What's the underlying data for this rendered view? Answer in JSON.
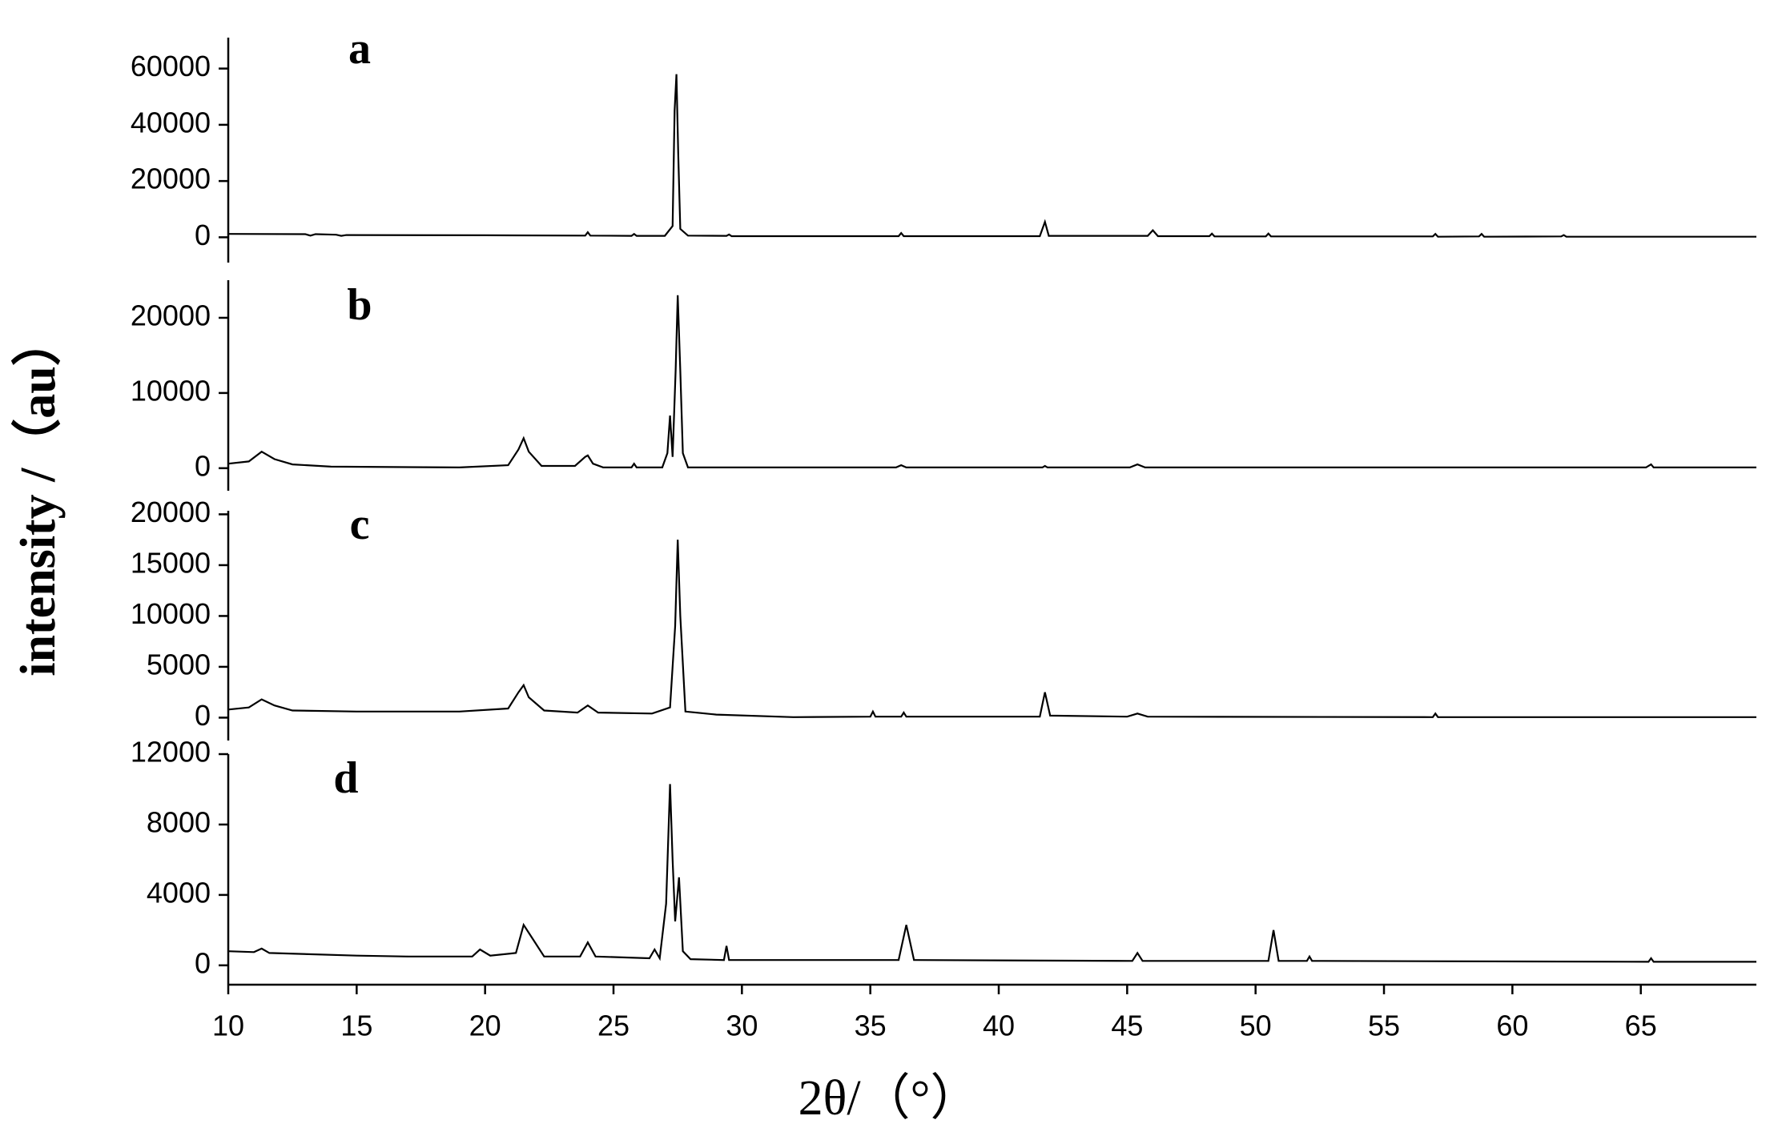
{
  "chart_data": [
    {
      "type": "line",
      "label": "a",
      "color": "#000000",
      "ylabel": "intensity /（au）",
      "xlim": [
        10,
        69.5
      ],
      "ylim": [
        -9000,
        71000
      ],
      "yticks": [
        0,
        20000,
        40000,
        60000
      ],
      "x": [
        10,
        13,
        13.2,
        13.4,
        14.2,
        14.4,
        14.6,
        20,
        23.9,
        24,
        24.1,
        25.7,
        25.8,
        25.9,
        27,
        27.3,
        27.38,
        27.45,
        27.52,
        27.6,
        27.9,
        29.4,
        29.5,
        29.6,
        36.1,
        36.2,
        36.3,
        41.6,
        41.8,
        41.95,
        45.8,
        46,
        46.2,
        48.2,
        48.3,
        48.4,
        50.4,
        50.5,
        50.6,
        56.9,
        57,
        57.1,
        58.7,
        58.8,
        58.9,
        61.9,
        62,
        62.1,
        69.5
      ],
      "values": [
        1200,
        1100,
        600,
        1100,
        900,
        500,
        800,
        700,
        600,
        1800,
        600,
        500,
        1200,
        500,
        500,
        4000,
        45000,
        58000,
        30000,
        3000,
        600,
        500,
        1000,
        400,
        400,
        1500,
        400,
        400,
        5500,
        500,
        500,
        2500,
        400,
        400,
        1300,
        300,
        300,
        1300,
        300,
        300,
        1200,
        200,
        300,
        1200,
        200,
        300,
        800,
        200,
        200
      ]
    },
    {
      "type": "line",
      "label": "b",
      "color": "#000000",
      "xlim": [
        10,
        69.5
      ],
      "ylim": [
        -3000,
        25000
      ],
      "yticks": [
        0,
        10000,
        20000
      ],
      "x": [
        10,
        10.8,
        11.3,
        11.8,
        12.5,
        14,
        19,
        20.9,
        21.3,
        21.5,
        21.7,
        22.2,
        23.5,
        23.9,
        24,
        24.2,
        24.6,
        25.7,
        25.8,
        25.9,
        26.9,
        27.1,
        27.2,
        27.3,
        27.42,
        27.5,
        27.6,
        27.7,
        27.9,
        30,
        36,
        36.2,
        36.4,
        41.7,
        41.8,
        41.9,
        45.1,
        45.4,
        45.7,
        65.2,
        65.4,
        65.5,
        69.5
      ],
      "values": [
        600,
        900,
        2200,
        1200,
        500,
        200,
        100,
        400,
        2500,
        4000,
        2200,
        300,
        300,
        1500,
        1700,
        600,
        100,
        100,
        600,
        100,
        100,
        2000,
        7000,
        1500,
        13000,
        23000,
        13000,
        2000,
        100,
        100,
        100,
        400,
        100,
        100,
        300,
        100,
        100,
        500,
        100,
        100,
        500,
        100,
        100
      ]
    },
    {
      "type": "line",
      "label": "c",
      "color": "#000000",
      "xlim": [
        10,
        69.5
      ],
      "ylim": [
        -2250,
        20350
      ],
      "yticks": [
        0,
        5000,
        10000,
        15000,
        20000
      ],
      "x": [
        10,
        10.8,
        11.3,
        11.8,
        12.5,
        15,
        19,
        20.9,
        21.3,
        21.5,
        21.7,
        22.3,
        23.6,
        24,
        24.4,
        26.5,
        27.2,
        27.4,
        27.5,
        27.6,
        27.8,
        29,
        32,
        35,
        35.1,
        35.2,
        36.2,
        36.3,
        36.4,
        41.6,
        41.8,
        42,
        45,
        45.4,
        45.8,
        56.9,
        57,
        57.1,
        62,
        69.5
      ],
      "values": [
        800,
        1000,
        1800,
        1200,
        700,
        600,
        600,
        900,
        2500,
        3200,
        2000,
        700,
        500,
        1200,
        500,
        400,
        1000,
        9000,
        17500,
        10000,
        600,
        300,
        50,
        100,
        600,
        100,
        100,
        500,
        100,
        100,
        2500,
        200,
        100,
        400,
        100,
        50,
        400,
        50,
        50,
        50
      ]
    },
    {
      "type": "line",
      "label": "d",
      "color": "#000000",
      "xlabel": "2θ/（°）",
      "xlim": [
        10,
        69.5
      ],
      "xticks": [
        10,
        15,
        20,
        25,
        30,
        35,
        40,
        45,
        50,
        55,
        60,
        65
      ],
      "ylim": [
        -1100,
        12000
      ],
      "yticks": [
        0,
        4000,
        8000,
        12000
      ],
      "x": [
        10,
        11,
        11.3,
        11.6,
        15,
        17,
        19.5,
        19.8,
        20.2,
        21.2,
        21.5,
        21.9,
        22.3,
        23.7,
        24,
        24.3,
        26.4,
        26.6,
        26.8,
        27.05,
        27.2,
        27.3,
        27.4,
        27.55,
        27.7,
        28,
        29.3,
        29.4,
        29.5,
        36.1,
        36.4,
        36.7,
        45.2,
        45.4,
        45.6,
        50.5,
        50.7,
        50.9,
        52,
        52.1,
        52.2,
        65.3,
        65.4,
        65.5,
        69.5
      ],
      "values": [
        800,
        750,
        950,
        700,
        550,
        500,
        500,
        900,
        550,
        700,
        2300,
        1400,
        500,
        500,
        1300,
        500,
        400,
        900,
        400,
        3500,
        10300,
        6000,
        2500,
        5000,
        800,
        350,
        300,
        1100,
        300,
        300,
        2300,
        300,
        250,
        700,
        250,
        250,
        2000,
        250,
        250,
        500,
        250,
        200,
        400,
        200,
        200
      ]
    }
  ]
}
